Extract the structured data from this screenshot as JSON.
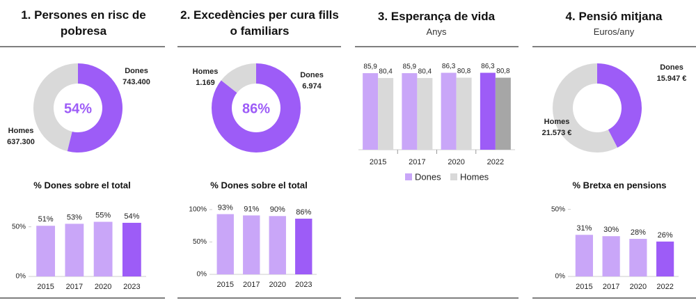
{
  "chart_data": [
    {
      "type": "pie",
      "title": "1. Persones en risc de pobresa",
      "categories": [
        "Dones",
        "Homes"
      ],
      "values": [
        743400,
        637300
      ],
      "value_labels": [
        "743.400",
        "637.300"
      ],
      "colors": [
        "#9d5cf7",
        "#d9d9d9"
      ],
      "center_label": "54%"
    },
    {
      "type": "bar",
      "title": "% Dones sobre el total",
      "categories": [
        "2015",
        "2017",
        "2020",
        "2023"
      ],
      "values": [
        51,
        53,
        55,
        54
      ],
      "value_labels": [
        "51%",
        "53%",
        "55%",
        "54%"
      ],
      "colors": [
        "#c9a6f8",
        "#c9a6f8",
        "#c9a6f8",
        "#9d5cf7"
      ],
      "ylim": [
        0,
        75
      ],
      "yticks": [
        {
          "value": 0,
          "label": "0%"
        },
        {
          "value": 50,
          "label": "50%"
        }
      ]
    },
    {
      "type": "pie",
      "title": "2. Excedències per cura fills o familiars",
      "categories": [
        "Dones",
        "Homes"
      ],
      "values": [
        6974,
        1169
      ],
      "value_labels": [
        "6.974",
        "1.169"
      ],
      "colors": [
        "#9d5cf7",
        "#d9d9d9"
      ],
      "center_label": "86%"
    },
    {
      "type": "bar",
      "title": "% Dones sobre el total",
      "categories": [
        "2015",
        "2017",
        "2020",
        "2023"
      ],
      "values": [
        93,
        91,
        90,
        86
      ],
      "value_labels": [
        "93%",
        "91%",
        "90%",
        "86%"
      ],
      "colors": [
        "#c9a6f8",
        "#c9a6f8",
        "#c9a6f8",
        "#9d5cf7"
      ],
      "ylim": [
        0,
        100
      ],
      "yticks": [
        {
          "value": 0,
          "label": "0%"
        },
        {
          "value": 50,
          "label": "50%"
        },
        {
          "value": 100,
          "label": "100%"
        }
      ]
    },
    {
      "type": "grouped_bar",
      "title": "3. Esperança de vida",
      "subtitle": "Anys",
      "categories": [
        "2015",
        "2017",
        "2020",
        "2022"
      ],
      "series": [
        {
          "name": "Dones",
          "color": "#c9a6f8",
          "colors": [
            "#c9a6f8",
            "#c9a6f8",
            "#c9a6f8",
            "#9d5cf7"
          ],
          "values": [
            85.9,
            85.9,
            86.3,
            86.3
          ],
          "value_labels": [
            "85,9",
            "85,9",
            "86,3",
            "86,3"
          ]
        },
        {
          "name": "Homes",
          "color": "#d9d9d9",
          "colors": [
            "#d9d9d9",
            "#d9d9d9",
            "#d9d9d9",
            "#a6a6a6"
          ],
          "values": [
            80.4,
            80.4,
            80.8,
            80.8
          ],
          "value_labels": [
            "80,4",
            "80,4",
            "80,8",
            "80,8"
          ]
        }
      ],
      "ylim": [
        0,
        100
      ]
    },
    {
      "type": "pie",
      "title": "4. Pensió mitjana",
      "subtitle": "Euros/any",
      "categories": [
        "Dones",
        "Homes"
      ],
      "values": [
        15947,
        21573
      ],
      "value_labels": [
        "15.947 €",
        "21.573 €"
      ],
      "colors": [
        "#9d5cf7",
        "#d9d9d9"
      ]
    },
    {
      "type": "bar",
      "title": "% Bretxa en pensions",
      "categories": [
        "2015",
        "2017",
        "2020",
        "2022"
      ],
      "values": [
        31,
        30,
        28,
        26
      ],
      "value_labels": [
        "31%",
        "30%",
        "28%",
        "26%"
      ],
      "colors": [
        "#c9a6f8",
        "#c9a6f8",
        "#c9a6f8",
        "#9d5cf7"
      ],
      "ylim": [
        0,
        55
      ],
      "yticks": [
        {
          "value": 0,
          "label": "0%"
        },
        {
          "value": 50,
          "label": "50%"
        }
      ]
    }
  ]
}
